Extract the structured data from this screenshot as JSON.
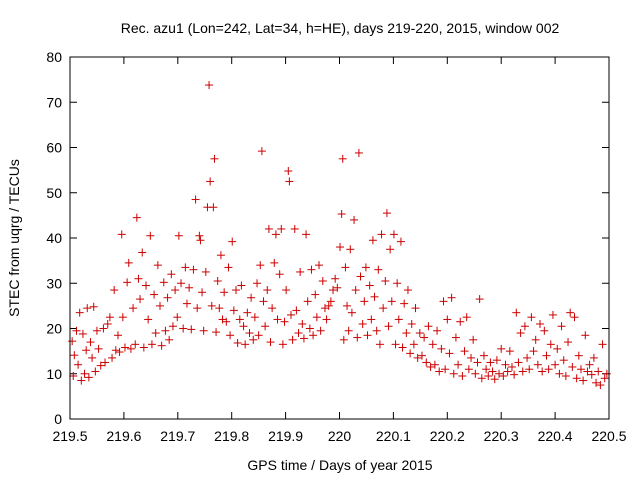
{
  "chart_data": {
    "type": "scatter",
    "title": "Rec. azu1 (Lon=242, Lat=34, h=HE), days 219-220, 2015, window 002",
    "xlabel": "GPS time / Days of year 2015",
    "ylabel": "STEC from uqrg / TECUs",
    "xlim": [
      219.5,
      220.5
    ],
    "ylim": [
      0,
      80
    ],
    "x_ticks": [
      {
        "value": 219.5,
        "label": "219.5"
      },
      {
        "value": 219.6,
        "label": "219.6"
      },
      {
        "value": 219.7,
        "label": "219.7"
      },
      {
        "value": 219.8,
        "label": "219.8"
      },
      {
        "value": 219.9,
        "label": "219.9"
      },
      {
        "value": 220.0,
        "label": "220"
      },
      {
        "value": 220.1,
        "label": "220.1"
      },
      {
        "value": 220.2,
        "label": "220.2"
      },
      {
        "value": 220.3,
        "label": "220.3"
      },
      {
        "value": 220.4,
        "label": "220.4"
      },
      {
        "value": 220.5,
        "label": "220.5"
      }
    ],
    "y_ticks": [
      {
        "value": 0,
        "label": "0"
      },
      {
        "value": 10,
        "label": "10"
      },
      {
        "value": 20,
        "label": "20"
      },
      {
        "value": 30,
        "label": "30"
      },
      {
        "value": 40,
        "label": "40"
      },
      {
        "value": 50,
        "label": "50"
      },
      {
        "value": 60,
        "label": "60"
      },
      {
        "value": 70,
        "label": "70"
      },
      {
        "value": 80,
        "label": "80"
      }
    ],
    "grid": false,
    "marker": "plus",
    "marker_color": "#cc0000",
    "series": [
      {
        "name": "",
        "points": [
          [
            219.504,
            17.2
          ],
          [
            219.506,
            9.5
          ],
          [
            219.508,
            14.1
          ],
          [
            219.512,
            19.5
          ],
          [
            219.515,
            12.0
          ],
          [
            219.518,
            23.5
          ],
          [
            219.521,
            8.5
          ],
          [
            219.524,
            18.8
          ],
          [
            219.527,
            10.0
          ],
          [
            219.53,
            15.2
          ],
          [
            219.532,
            24.5
          ],
          [
            219.535,
            9.2
          ],
          [
            219.538,
            17.0
          ],
          [
            219.541,
            13.5
          ],
          [
            219.544,
            24.8
          ],
          [
            219.547,
            10.5
          ],
          [
            219.55,
            19.5
          ],
          [
            219.553,
            15.5
          ],
          [
            219.557,
            11.8
          ],
          [
            219.562,
            20.0
          ],
          [
            219.565,
            12.5
          ],
          [
            219.57,
            21.0
          ],
          [
            219.574,
            22.5
          ],
          [
            219.578,
            13.5
          ],
          [
            219.582,
            28.5
          ],
          [
            219.585,
            15.2
          ],
          [
            219.589,
            18.5
          ],
          [
            219.592,
            14.8
          ],
          [
            219.596,
            40.8
          ],
          [
            219.598,
            22.5
          ],
          [
            219.602,
            15.8
          ],
          [
            219.606,
            30.2
          ],
          [
            219.609,
            34.5
          ],
          [
            219.613,
            15.5
          ],
          [
            219.617,
            24.5
          ],
          [
            219.621,
            16.5
          ],
          [
            219.624,
            44.5
          ],
          [
            219.627,
            31.0
          ],
          [
            219.63,
            26.5
          ],
          [
            219.634,
            36.8
          ],
          [
            219.637,
            15.8
          ],
          [
            219.641,
            29.5
          ],
          [
            219.645,
            22.0
          ],
          [
            219.649,
            40.5
          ],
          [
            219.652,
            16.5
          ],
          [
            219.656,
            27.5
          ],
          [
            219.659,
            19.0
          ],
          [
            219.663,
            34.0
          ],
          [
            219.667,
            25.0
          ],
          [
            219.67,
            16.2
          ],
          [
            219.674,
            30.2
          ],
          [
            219.677,
            19.5
          ],
          [
            219.681,
            26.8
          ],
          [
            219.684,
            17.5
          ],
          [
            219.688,
            32.0
          ],
          [
            219.691,
            20.5
          ],
          [
            219.695,
            28.5
          ],
          [
            219.699,
            22.5
          ],
          [
            219.702,
            40.5
          ],
          [
            219.706,
            30.0
          ],
          [
            219.71,
            20.0
          ],
          [
            219.714,
            33.5
          ],
          [
            219.717,
            25.5
          ],
          [
            219.721,
            29.0
          ],
          [
            219.725,
            19.8
          ],
          [
            219.729,
            33.0
          ],
          [
            219.733,
            48.5
          ],
          [
            219.736,
            24.5
          ],
          [
            219.74,
            40.5
          ],
          [
            219.742,
            39.5
          ],
          [
            219.745,
            28.0
          ],
          [
            219.748,
            19.5
          ],
          [
            219.752,
            32.5
          ],
          [
            219.755,
            46.8
          ],
          [
            219.758,
            73.8
          ],
          [
            219.76,
            52.5
          ],
          [
            219.763,
            25.0
          ],
          [
            219.766,
            46.8
          ],
          [
            219.768,
            57.5
          ],
          [
            219.771,
            19.2
          ],
          [
            219.774,
            30.5
          ],
          [
            219.777,
            24.5
          ],
          [
            219.78,
            36.2
          ],
          [
            219.783,
            22.0
          ],
          [
            219.786,
            28.0
          ],
          [
            219.79,
            21.5
          ],
          [
            219.794,
            33.5
          ],
          [
            219.797,
            18.5
          ],
          [
            219.801,
            39.2
          ],
          [
            219.804,
            24.0
          ],
          [
            219.808,
            28.5
          ],
          [
            219.811,
            16.8
          ],
          [
            219.815,
            22.0
          ],
          [
            219.818,
            29.5
          ],
          [
            219.822,
            20.5
          ],
          [
            219.825,
            16.5
          ],
          [
            219.829,
            23.5
          ],
          [
            219.833,
            19.0
          ],
          [
            219.836,
            26.8
          ],
          [
            219.84,
            17.5
          ],
          [
            219.843,
            22.5
          ],
          [
            219.847,
            30.0
          ],
          [
            219.85,
            18.5
          ],
          [
            219.853,
            34.0
          ],
          [
            219.856,
            59.2
          ],
          [
            219.859,
            26.0
          ],
          [
            219.862,
            20.5
          ],
          [
            219.866,
            28.5
          ],
          [
            219.869,
            42.0
          ],
          [
            219.872,
            17.0
          ],
          [
            219.875,
            24.5
          ],
          [
            219.879,
            34.5
          ],
          [
            219.882,
            40.8
          ],
          [
            219.885,
            22.0
          ],
          [
            219.889,
            32.0
          ],
          [
            219.892,
            42.0
          ],
          [
            219.895,
            16.5
          ],
          [
            219.898,
            21.5
          ],
          [
            219.901,
            28.5
          ],
          [
            219.905,
            54.8
          ],
          [
            219.907,
            52.5
          ],
          [
            219.91,
            23.0
          ],
          [
            219.913,
            17.5
          ],
          [
            219.917,
            42.0
          ],
          [
            219.92,
            24.0
          ],
          [
            219.924,
            19.0
          ],
          [
            219.927,
            32.5
          ],
          [
            219.931,
            21.0
          ],
          [
            219.934,
            17.8
          ],
          [
            219.938,
            40.8
          ],
          [
            219.941,
            26.0
          ],
          [
            219.945,
            20.0
          ],
          [
            219.948,
            33.0
          ],
          [
            219.951,
            18.5
          ],
          [
            219.955,
            27.5
          ],
          [
            219.958,
            22.5
          ],
          [
            219.962,
            34.0
          ],
          [
            219.965,
            19.5
          ],
          [
            219.969,
            30.5
          ],
          [
            219.973,
            24.5
          ],
          [
            219.976,
            22.0
          ],
          [
            219.98,
            25.0
          ],
          [
            219.984,
            26.0
          ],
          [
            219.988,
            28.5
          ],
          [
            219.992,
            31.0
          ],
          [
            219.996,
            29.0
          ],
          [
            220.001,
            38.0
          ],
          [
            220.004,
            45.3
          ],
          [
            220.006,
            57.5
          ],
          [
            220.008,
            17.5
          ],
          [
            220.011,
            33.5
          ],
          [
            220.014,
            25.0
          ],
          [
            220.017,
            19.5
          ],
          [
            220.02,
            37.5
          ],
          [
            220.023,
            23.5
          ],
          [
            220.027,
            44.0
          ],
          [
            220.03,
            28.5
          ],
          [
            220.033,
            18.0
          ],
          [
            220.036,
            58.8
          ],
          [
            220.039,
            31.5
          ],
          [
            220.043,
            21.0
          ],
          [
            220.046,
            26.0
          ],
          [
            220.049,
            33.5
          ],
          [
            220.052,
            18.5
          ],
          [
            220.056,
            29.5
          ],
          [
            220.059,
            22.0
          ],
          [
            220.062,
            39.5
          ],
          [
            220.065,
            27.0
          ],
          [
            220.069,
            19.5
          ],
          [
            220.072,
            33.0
          ],
          [
            220.075,
            16.5
          ],
          [
            220.078,
            40.8
          ],
          [
            220.081,
            24.5
          ],
          [
            220.085,
            30.5
          ],
          [
            220.088,
            45.5
          ],
          [
            220.091,
            20.5
          ],
          [
            220.094,
            37.5
          ],
          [
            220.097,
            26.0
          ],
          [
            220.101,
            40.8
          ],
          [
            220.104,
            16.5
          ],
          [
            220.107,
            30.0
          ],
          [
            220.11,
            22.0
          ],
          [
            220.114,
            39.2
          ],
          [
            220.117,
            15.8
          ],
          [
            220.12,
            25.5
          ],
          [
            220.124,
            19.0
          ],
          [
            220.127,
            28.5
          ],
          [
            220.131,
            14.5
          ],
          [
            220.134,
            21.0
          ],
          [
            220.138,
            16.5
          ],
          [
            220.141,
            24.5
          ],
          [
            220.145,
            13.5
          ],
          [
            220.149,
            19.0
          ],
          [
            220.153,
            14.0
          ],
          [
            220.157,
            18.0
          ],
          [
            220.161,
            12.5
          ],
          [
            220.165,
            20.5
          ],
          [
            220.169,
            11.5
          ],
          [
            220.173,
            16.5
          ],
          [
            220.177,
            12.0
          ],
          [
            220.181,
            19.5
          ],
          [
            220.185,
            10.5
          ],
          [
            220.189,
            15.5
          ],
          [
            220.193,
            26.0
          ],
          [
            220.196,
            11.0
          ],
          [
            220.2,
            22.0
          ],
          [
            220.204,
            14.5
          ],
          [
            220.208,
            26.8
          ],
          [
            220.212,
            10.0
          ],
          [
            220.216,
            18.0
          ],
          [
            220.22,
            12.0
          ],
          [
            220.224,
            21.5
          ],
          [
            220.228,
            9.5
          ],
          [
            220.232,
            15.0
          ],
          [
            220.236,
            22.5
          ],
          [
            220.24,
            11.0
          ],
          [
            220.244,
            13.5
          ],
          [
            220.248,
            17.5
          ],
          [
            220.252,
            10.0
          ],
          [
            220.256,
            12.5
          ],
          [
            220.26,
            26.5
          ],
          [
            220.264,
            9.0
          ],
          [
            220.268,
            14.0
          ],
          [
            220.272,
            11.0
          ],
          [
            220.276,
            9.5
          ],
          [
            220.28,
            12.5
          ],
          [
            220.284,
            10.5
          ],
          [
            220.288,
            8.8
          ],
          [
            220.292,
            13.0
          ],
          [
            220.296,
            10.0
          ],
          [
            220.3,
            15.5
          ],
          [
            220.304,
            9.5
          ],
          [
            220.308,
            12.0
          ],
          [
            220.312,
            10.5
          ],
          [
            220.316,
            15.0
          ],
          [
            220.32,
            11.5
          ],
          [
            220.324,
            9.8
          ],
          [
            220.328,
            23.5
          ],
          [
            220.332,
            12.5
          ],
          [
            220.336,
            19.0
          ],
          [
            220.34,
            10.5
          ],
          [
            220.344,
            20.5
          ],
          [
            220.348,
            13.5
          ],
          [
            220.352,
            11.0
          ],
          [
            220.356,
            22.5
          ],
          [
            220.36,
            15.0
          ],
          [
            220.364,
            17.5
          ],
          [
            220.368,
            12.0
          ],
          [
            220.372,
            21.0
          ],
          [
            220.376,
            10.5
          ],
          [
            220.38,
            19.5
          ],
          [
            220.384,
            14.0
          ],
          [
            220.388,
            11.0
          ],
          [
            220.392,
            16.5
          ],
          [
            220.396,
            23.0
          ],
          [
            220.4,
            12.0
          ],
          [
            220.404,
            15.5
          ],
          [
            220.408,
            10.0
          ],
          [
            220.412,
            20.5
          ],
          [
            220.416,
            13.0
          ],
          [
            220.42,
            9.5
          ],
          [
            220.424,
            17.0
          ],
          [
            220.428,
            23.5
          ],
          [
            220.432,
            11.5
          ],
          [
            220.436,
            22.5
          ],
          [
            220.44,
            9.0
          ],
          [
            220.444,
            14.0
          ],
          [
            220.448,
            11.0
          ],
          [
            220.452,
            8.5
          ],
          [
            220.456,
            18.5
          ],
          [
            220.46,
            10.5
          ],
          [
            220.464,
            12.0
          ],
          [
            220.468,
            9.8
          ],
          [
            220.472,
            13.5
          ],
          [
            220.476,
            8.0
          ],
          [
            220.48,
            10.5
          ],
          [
            220.484,
            7.5
          ],
          [
            220.488,
            16.5
          ],
          [
            220.492,
            9.0
          ],
          [
            220.496,
            10.0
          ]
        ]
      }
    ]
  }
}
